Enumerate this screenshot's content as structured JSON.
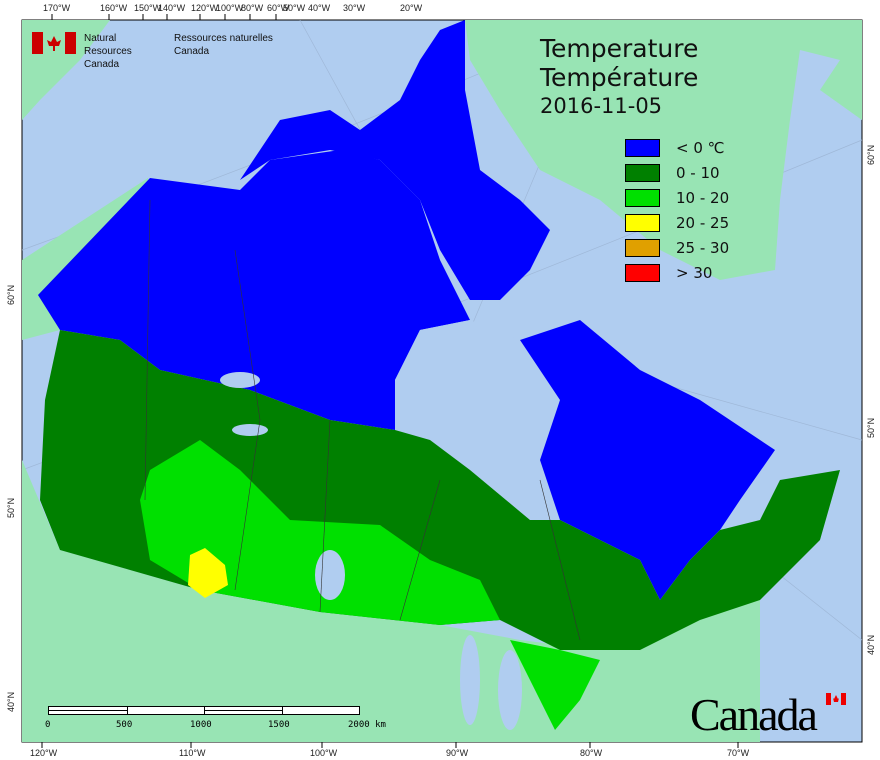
{
  "header": {
    "org_en": "Natural Resources",
    "org_en2": "Canada",
    "org_fr": "Ressources naturelles",
    "org_fr2": "Canada"
  },
  "title": {
    "line1": "Temperature",
    "line2": "Température",
    "date": "2016-11-05"
  },
  "legend": [
    {
      "label": "< 0 ℃",
      "color": "#0000ff"
    },
    {
      "label": "0 - 10",
      "color": "#008000"
    },
    {
      "label": "10 - 20",
      "color": "#00e000"
    },
    {
      "label": "20 - 25",
      "color": "#ffff00"
    },
    {
      "label": "25 - 30",
      "color": "#e0a000"
    },
    {
      "label": "> 30",
      "color": "#ff0000"
    }
  ],
  "top_ticks": [
    "170°W",
    "160°W",
    "150°W",
    "140°W",
    "120°W",
    "100°W",
    "80°W",
    "60°W",
    "50°W",
    "40°W",
    "30°W",
    "20°W"
  ],
  "bottom_ticks": [
    "120°W",
    "110°W",
    "100°W",
    "90°W",
    "80°W",
    "70°W"
  ],
  "left_ticks": [
    "60°N",
    "50°N",
    "40°N"
  ],
  "right_ticks": [
    "60°N",
    "50°N",
    "40°N"
  ],
  "scale": {
    "labels": [
      "0",
      "500",
      "1000",
      "1500",
      "2000 km"
    ]
  },
  "wordmark": "Canada",
  "colors": {
    "ocean": "#b0cdf0",
    "land": "#98e4b4"
  }
}
